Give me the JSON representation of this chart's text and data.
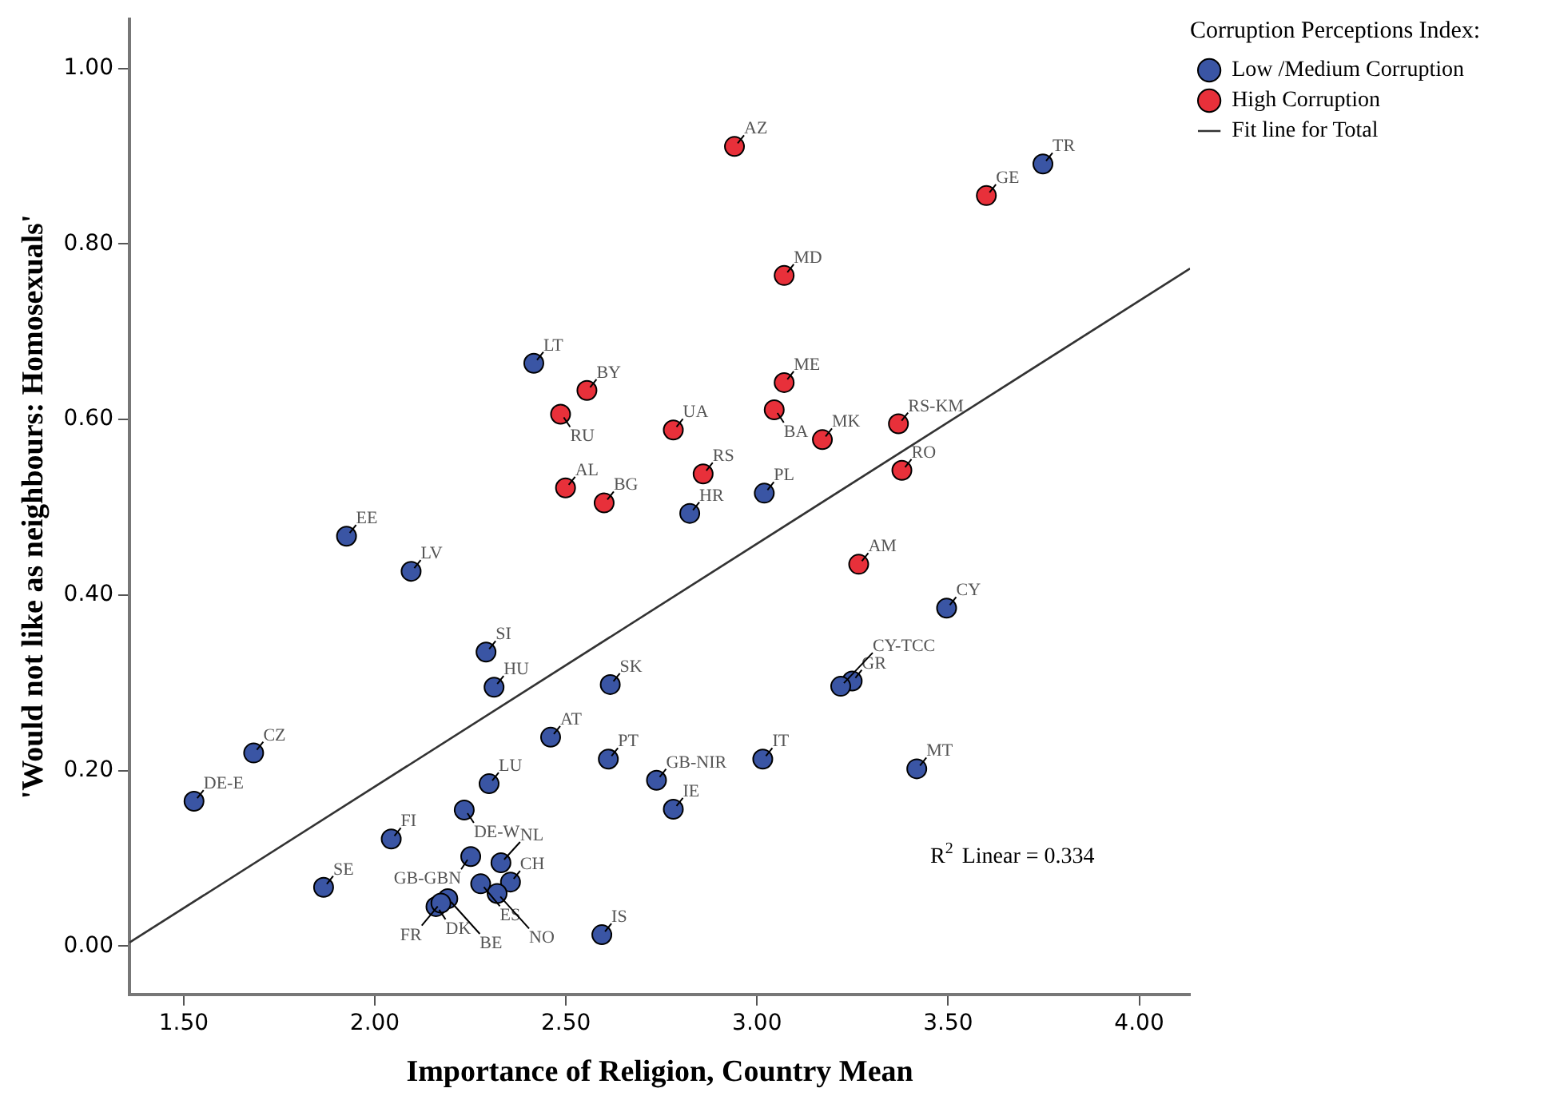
{
  "chart_data": {
    "type": "scatter",
    "xlabel": "Importance of Religion, Country Mean",
    "ylabel": "'Would not like as neighbours: Homosexuals'",
    "legend_title": "Corruption Perceptions Index:",
    "legend": "top right",
    "grid": false,
    "marker": "circle",
    "xlim": [
      1.358,
      4.133
    ],
    "xticks": [
      {
        "value": 1.5,
        "label": "1.50"
      },
      {
        "value": 2,
        "label": "2.00"
      },
      {
        "value": 2.5,
        "label": "2.50"
      },
      {
        "value": 3,
        "label": "3.00"
      },
      {
        "value": 3.5,
        "label": "3.50"
      },
      {
        "value": 4,
        "label": "4.00"
      }
    ],
    "ylim": [
      -0.055,
      1.056
    ],
    "yticks": [
      {
        "value": 0,
        "label": "0.00"
      },
      {
        "value": 0.2,
        "label": "0.20"
      },
      {
        "value": 0.4,
        "label": "0.40"
      },
      {
        "value": 0.6,
        "label": "0.60"
      },
      {
        "value": 0.8,
        "label": "0.80"
      },
      {
        "value": 1,
        "label": "1.00"
      }
    ],
    "series": [
      {
        "name": "Low /Medium Corruption",
        "color": "#3a55a4",
        "x": [
          2.416,
          2.824,
          3.019,
          1.926,
          3.748,
          2.095,
          2.291,
          2.312,
          2.616,
          2.46,
          1.683,
          1.527,
          2.611,
          2.737,
          2.781,
          3.015,
          2.299,
          2.234,
          2.043,
          2.251,
          2.33,
          1.866,
          2.277,
          2.355,
          2.32,
          2.16,
          2.191,
          2.173,
          2.594,
          3.496,
          3.249,
          3.219,
          3.418
        ],
        "values": [
          0.664,
          0.493,
          0.516,
          0.467,
          0.891,
          0.427,
          0.335,
          0.295,
          0.298,
          0.238,
          0.22,
          0.165,
          0.213,
          0.189,
          0.156,
          0.213,
          0.185,
          0.155,
          0.122,
          0.102,
          0.095,
          0.067,
          0.071,
          0.073,
          0.06,
          0.045,
          0.054,
          0.049,
          0.013,
          0.385,
          0.302,
          0.296,
          0.202
        ]
      },
      {
        "name": "High Corruption",
        "color": "#e8303a",
        "x": [
          2.941,
          3.071,
          2.555,
          2.486,
          2.781,
          3.071,
          3.045,
          2.859,
          2.499,
          2.6,
          3.6,
          3.171,
          3.37,
          3.379,
          3.266
        ],
        "values": [
          0.911,
          0.764,
          0.633,
          0.606,
          0.588,
          0.642,
          0.611,
          0.538,
          0.522,
          0.505,
          0.855,
          0.577,
          0.595,
          0.542,
          0.435
        ]
      },
      {
        "name": "Fit line for Total",
        "type": "line",
        "color": "#333333",
        "marker": "none",
        "x": [
          1.358,
          4.133
        ],
        "values": [
          0.004,
          0.772
        ]
      }
    ],
    "annotations": [
      {
        "text": "LT",
        "x": 2.416,
        "y": 0.664
      },
      {
        "text": "HR",
        "x": 2.824,
        "y": 0.493
      },
      {
        "text": "PL",
        "x": 3.019,
        "y": 0.516
      },
      {
        "text": "EE",
        "x": 1.926,
        "y": 0.467
      },
      {
        "text": "TR",
        "x": 3.748,
        "y": 0.891
      },
      {
        "text": "LV",
        "x": 2.095,
        "y": 0.427
      },
      {
        "text": "SI",
        "x": 2.291,
        "y": 0.335
      },
      {
        "text": "HU",
        "x": 2.312,
        "y": 0.295
      },
      {
        "text": "SK",
        "x": 2.616,
        "y": 0.298
      },
      {
        "text": "AT",
        "x": 2.46,
        "y": 0.238
      },
      {
        "text": "CZ",
        "x": 1.683,
        "y": 0.22
      },
      {
        "text": "DE-E",
        "x": 1.527,
        "y": 0.165
      },
      {
        "text": "PT",
        "x": 2.611,
        "y": 0.213
      },
      {
        "text": "GB-NIR",
        "x": 2.737,
        "y": 0.189
      },
      {
        "text": "IE",
        "x": 2.781,
        "y": 0.156
      },
      {
        "text": "IT",
        "x": 3.015,
        "y": 0.213
      },
      {
        "text": "LU",
        "x": 2.299,
        "y": 0.185
      },
      {
        "text": "DE-W",
        "x": 2.234,
        "y": 0.155
      },
      {
        "text": "FI",
        "x": 2.043,
        "y": 0.122
      },
      {
        "text": "GB-GBN",
        "x": 2.251,
        "y": 0.102
      },
      {
        "text": "NL",
        "x": 2.33,
        "y": 0.095
      },
      {
        "text": "SE",
        "x": 1.866,
        "y": 0.067
      },
      {
        "text": "ES",
        "x": 2.277,
        "y": 0.071
      },
      {
        "text": "CH",
        "x": 2.355,
        "y": 0.073
      },
      {
        "text": "NO",
        "x": 2.32,
        "y": 0.06
      },
      {
        "text": "DK",
        "x": 2.16,
        "y": 0.045
      },
      {
        "text": "BE",
        "x": 2.191,
        "y": 0.054
      },
      {
        "text": "FR",
        "x": 2.173,
        "y": 0.049
      },
      {
        "text": "IS",
        "x": 2.594,
        "y": 0.013
      },
      {
        "text": "CY",
        "x": 3.496,
        "y": 0.385
      },
      {
        "text": "GR",
        "x": 3.249,
        "y": 0.302
      },
      {
        "text": "CY-TCC",
        "x": 3.219,
        "y": 0.296
      },
      {
        "text": "MT",
        "x": 3.418,
        "y": 0.202
      },
      {
        "text": "AZ",
        "x": 2.941,
        "y": 0.911
      },
      {
        "text": "MD",
        "x": 3.071,
        "y": 0.764
      },
      {
        "text": "BY",
        "x": 2.555,
        "y": 0.633
      },
      {
        "text": "RU",
        "x": 2.486,
        "y": 0.606
      },
      {
        "text": "UA",
        "x": 2.781,
        "y": 0.588
      },
      {
        "text": "ME",
        "x": 3.071,
        "y": 0.642
      },
      {
        "text": "BA",
        "x": 3.045,
        "y": 0.611
      },
      {
        "text": "RS",
        "x": 2.859,
        "y": 0.538
      },
      {
        "text": "AL",
        "x": 2.499,
        "y": 0.522
      },
      {
        "text": "BG",
        "x": 2.6,
        "y": 0.505
      },
      {
        "text": "GE",
        "x": 3.6,
        "y": 0.855
      },
      {
        "text": "MK",
        "x": 3.171,
        "y": 0.577
      },
      {
        "text": "RS-KM",
        "x": 3.37,
        "y": 0.595
      },
      {
        "text": "RO",
        "x": 3.379,
        "y": 0.542
      },
      {
        "text": "AM",
        "x": 3.266,
        "y": 0.435
      },
      "R$^{2}$ Linear = 0.334"
    ]
  }
}
